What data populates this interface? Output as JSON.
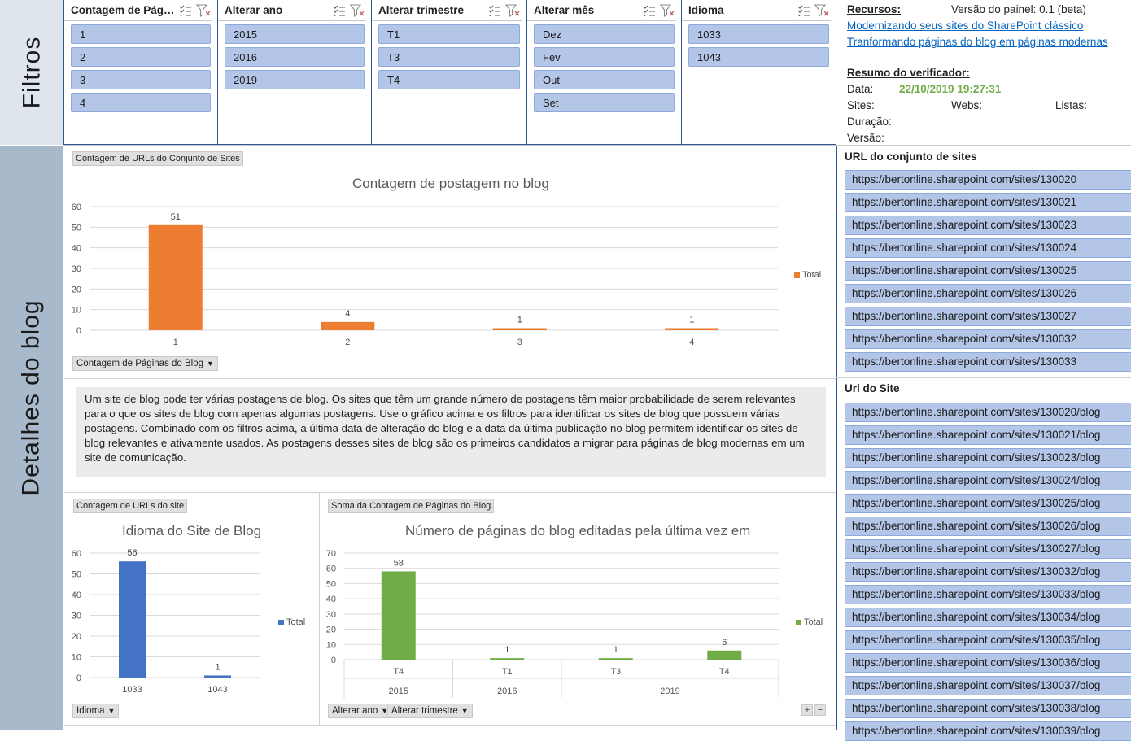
{
  "sidebar": {
    "filters_label": "Filtros",
    "details_label": "Detalhes do blog"
  },
  "slicers": [
    {
      "title": "Contagem de Pág…",
      "items": [
        "1",
        "2",
        "3",
        "4"
      ]
    },
    {
      "title": "Alterar ano",
      "items": [
        "2015",
        "2016",
        "2019"
      ]
    },
    {
      "title": "Alterar trimestre",
      "items": [
        "T1",
        "T3",
        "T4"
      ]
    },
    {
      "title": "Alterar mês",
      "items": [
        "Dez",
        "Fev",
        "Out",
        "Set"
      ]
    },
    {
      "title": "Idioma",
      "items": [
        "1033",
        "1043"
      ]
    }
  ],
  "resources": {
    "label": "Recursos:",
    "version": "Versão do painel: 0.1 (beta)",
    "link1": "Modernizando seus sites do SharePoint clássico",
    "link2": "Tranformando páginas do blog em páginas modernas",
    "summary_label": "Resumo do verificador:",
    "date_label": "Data:",
    "date_value": "22/10/2019 19:27:31",
    "sites_label": "Sites:",
    "webs_label": "Webs:",
    "lists_label": "Listas:",
    "duration_label": "Duração:",
    "version_label": "Versão:"
  },
  "chart1": {
    "tag": "Contagem de URLs do Conjunto de Sites",
    "dropdown": "Contagem de Páginas do Blog",
    "legend": "Total",
    "color": "#ed7d31"
  },
  "chart2": {
    "tag": "Contagem de URLs do site",
    "dropdown": "Idioma",
    "legend": "Total",
    "color": "#4472c4"
  },
  "chart3": {
    "tag": "Soma da Contagem de Páginas do Blog",
    "dropdown1": "Alterar ano",
    "dropdown2": "Alterar trimestre",
    "legend": "Total",
    "color": "#70ad47"
  },
  "description": "Um site de blog pode ter várias postagens de blog. Os sites que têm um grande número de postagens têm maior probabilidade de serem relevantes para o que os sites de blog com apenas algumas postagens. Use o gráfico acima e os filtros para identificar os sites de blog que possuem várias postagens. Combinado com os filtros acima, a última data de alteração do blog e a data da última publicação no blog permitem identificar os sites de blog relevantes e ativamente usados. As postagens desses sites de blog são os primeiros candidatos a migrar para páginas de blog modernas em um site de comunicação.",
  "site_collection_urls": {
    "header": "URL do conjunto de sites",
    "items": [
      "https://bertonline.sharepoint.com/sites/130020",
      "https://bertonline.sharepoint.com/sites/130021",
      "https://bertonline.sharepoint.com/sites/130023",
      "https://bertonline.sharepoint.com/sites/130024",
      "https://bertonline.sharepoint.com/sites/130025",
      "https://bertonline.sharepoint.com/sites/130026",
      "https://bertonline.sharepoint.com/sites/130027",
      "https://bertonline.sharepoint.com/sites/130032",
      "https://bertonline.sharepoint.com/sites/130033"
    ]
  },
  "site_urls": {
    "header": "Url do Site",
    "items": [
      "https://bertonline.sharepoint.com/sites/130020/blog",
      "https://bertonline.sharepoint.com/sites/130021/blog",
      "https://bertonline.sharepoint.com/sites/130023/blog",
      "https://bertonline.sharepoint.com/sites/130024/blog",
      "https://bertonline.sharepoint.com/sites/130025/blog",
      "https://bertonline.sharepoint.com/sites/130026/blog",
      "https://bertonline.sharepoint.com/sites/130027/blog",
      "https://bertonline.sharepoint.com/sites/130032/blog",
      "https://bertonline.sharepoint.com/sites/130033/blog",
      "https://bertonline.sharepoint.com/sites/130034/blog",
      "https://bertonline.sharepoint.com/sites/130035/blog",
      "https://bertonline.sharepoint.com/sites/130036/blog",
      "https://bertonline.sharepoint.com/sites/130037/blog",
      "https://bertonline.sharepoint.com/sites/130038/blog",
      "https://bertonline.sharepoint.com/sites/130039/blog"
    ]
  },
  "chart_data": [
    {
      "type": "bar",
      "title": "Contagem de postagem no blog",
      "categories": [
        "1",
        "2",
        "3",
        "4"
      ],
      "series": [
        {
          "name": "Total",
          "values": [
            51,
            4,
            1,
            1
          ]
        }
      ],
      "ylim": [
        0,
        60
      ],
      "yticks": [
        0,
        10,
        20,
        30,
        40,
        50,
        60
      ],
      "legend": "right"
    },
    {
      "type": "bar",
      "title": "Idioma do Site de Blog",
      "categories": [
        "1033",
        "1043"
      ],
      "series": [
        {
          "name": "Total",
          "values": [
            56,
            1
          ]
        }
      ],
      "ylim": [
        0,
        60
      ],
      "yticks": [
        0,
        10,
        20,
        30,
        40,
        50,
        60
      ],
      "legend": "right"
    },
    {
      "type": "bar",
      "title": "Número de páginas do blog editadas pela última vez em",
      "categories": [
        "T4",
        "T1",
        "T3",
        "T4"
      ],
      "groups": [
        {
          "label": "2015",
          "span": 1
        },
        {
          "label": "2016",
          "span": 1
        },
        {
          "label": "2019",
          "span": 2
        }
      ],
      "series": [
        {
          "name": "Total",
          "values": [
            58,
            1,
            1,
            6
          ]
        }
      ],
      "ylim": [
        0,
        70
      ],
      "yticks": [
        0,
        10,
        20,
        30,
        40,
        50,
        60,
        70
      ],
      "legend": "right"
    }
  ]
}
